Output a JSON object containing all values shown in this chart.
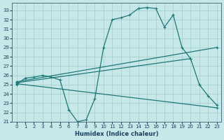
{
  "xlabel": "Humidex (Indice chaleur)",
  "ylabel": "",
  "bg_color": "#c6e8e8",
  "grid_color": "#aad0d0",
  "line_color": "#1e7878",
  "xlim": [
    -0.5,
    23.5
  ],
  "ylim": [
    21,
    33.8
  ],
  "yticks": [
    21,
    22,
    23,
    24,
    25,
    26,
    27,
    28,
    29,
    30,
    31,
    32,
    33
  ],
  "xticks": [
    0,
    1,
    2,
    3,
    4,
    5,
    6,
    7,
    8,
    9,
    10,
    11,
    12,
    13,
    14,
    15,
    16,
    17,
    18,
    19,
    20,
    21,
    22,
    23
  ],
  "line1_x": [
    0,
    1,
    2,
    3,
    4,
    5,
    6,
    7,
    8,
    9,
    10,
    11,
    12,
    13,
    14,
    15,
    16,
    17,
    18,
    19,
    20,
    21,
    22,
    23
  ],
  "line1_y": [
    25.0,
    25.7,
    25.8,
    26.0,
    25.8,
    25.5,
    22.3,
    21.0,
    21.2,
    23.5,
    29.0,
    32.0,
    32.2,
    32.5,
    33.2,
    33.3,
    33.2,
    31.2,
    32.5,
    29.0,
    27.8,
    25.0,
    23.8,
    22.8
  ],
  "line2_x": [
    0,
    23
  ],
  "line2_y": [
    25.3,
    29.0
  ],
  "line3_x": [
    0,
    20
  ],
  "line3_y": [
    25.2,
    27.8
  ],
  "line4_x": [
    0,
    23
  ],
  "line4_y": [
    25.1,
    22.5
  ]
}
